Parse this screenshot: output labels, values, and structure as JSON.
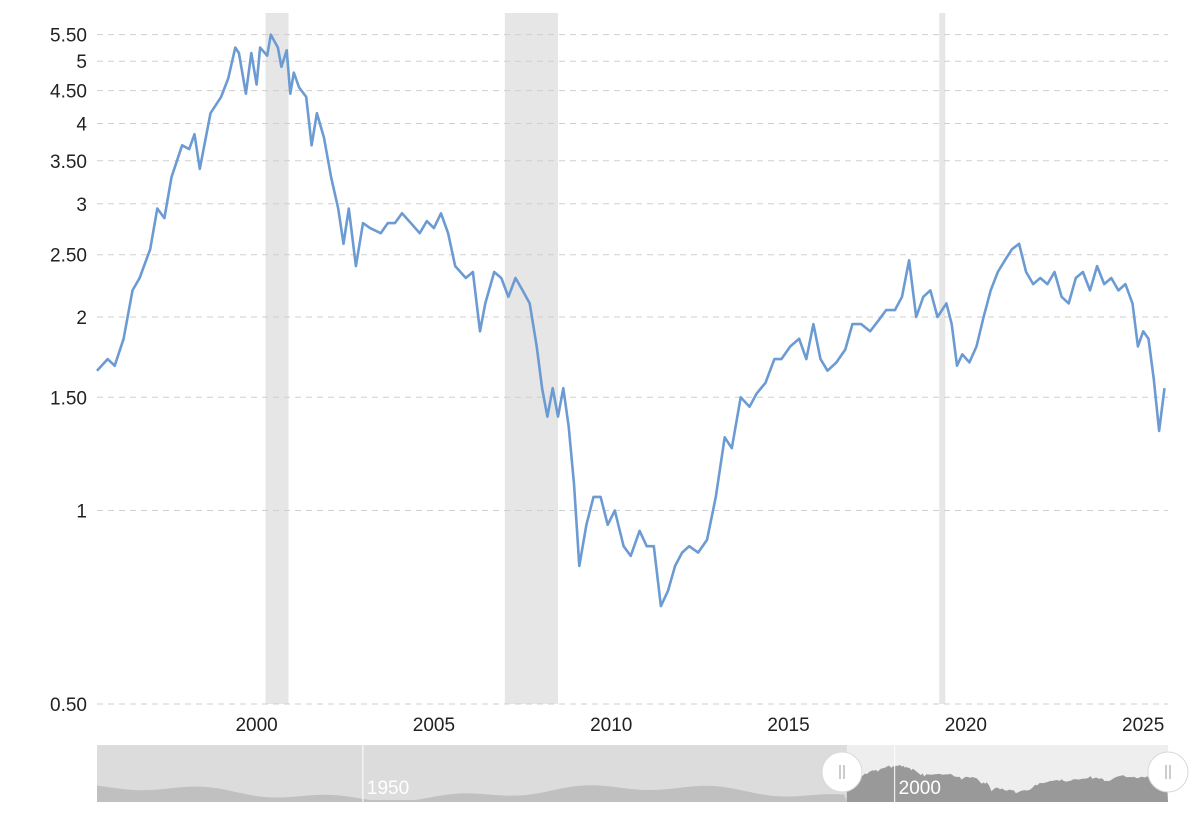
{
  "chart_data": {
    "type": "line",
    "title": "",
    "xlabel": "",
    "ylabel": "",
    "yscale": "log",
    "ylim": [
      0.5,
      5.9
    ],
    "xlim": [
      1995.5,
      2025.7
    ],
    "grid": true,
    "line_color": "#6b9bd2",
    "recession_color": "#e6e6e6",
    "y_ticks": [
      0.5,
      1,
      1.5,
      2,
      2.5,
      3,
      3.5,
      4,
      4.5,
      5,
      5.5
    ],
    "y_tick_labels": [
      "0.50",
      "1",
      "1.50",
      "2",
      "2.50",
      "3",
      "3.50",
      "4",
      "4.50",
      "5",
      "5.50"
    ],
    "x_ticks": [
      2000,
      2005,
      2010,
      2015,
      2020,
      2025
    ],
    "x_tick_labels": [
      "2000",
      "2005",
      "2010",
      "2015",
      "2020",
      "2025"
    ],
    "recessions": [
      {
        "start": 2000.25,
        "end": 2000.9
      },
      {
        "start": 2007.0,
        "end": 2008.5
      },
      {
        "start": 2019.25,
        "end": 2019.42
      }
    ],
    "series": [
      {
        "values": [
          [
            1995.5,
            1.65
          ],
          [
            1995.8,
            1.72
          ],
          [
            1996.0,
            1.68
          ],
          [
            1996.25,
            1.85
          ],
          [
            1996.5,
            2.2
          ],
          [
            1996.7,
            2.3
          ],
          [
            1997.0,
            2.55
          ],
          [
            1997.2,
            2.95
          ],
          [
            1997.4,
            2.85
          ],
          [
            1997.6,
            3.3
          ],
          [
            1997.9,
            3.7
          ],
          [
            1998.1,
            3.65
          ],
          [
            1998.25,
            3.85
          ],
          [
            1998.4,
            3.4
          ],
          [
            1998.7,
            4.15
          ],
          [
            1999.0,
            4.4
          ],
          [
            1999.2,
            4.7
          ],
          [
            1999.4,
            5.25
          ],
          [
            1999.5,
            5.15
          ],
          [
            1999.7,
            4.45
          ],
          [
            1999.85,
            5.15
          ],
          [
            2000.0,
            4.6
          ],
          [
            2000.1,
            5.25
          ],
          [
            2000.3,
            5.1
          ],
          [
            2000.4,
            5.5
          ],
          [
            2000.6,
            5.25
          ],
          [
            2000.7,
            4.9
          ],
          [
            2000.85,
            5.2
          ],
          [
            2000.95,
            4.45
          ],
          [
            2001.05,
            4.8
          ],
          [
            2001.2,
            4.55
          ],
          [
            2001.4,
            4.4
          ],
          [
            2001.55,
            3.7
          ],
          [
            2001.7,
            4.15
          ],
          [
            2001.9,
            3.8
          ],
          [
            2002.1,
            3.3
          ],
          [
            2002.3,
            2.95
          ],
          [
            2002.45,
            2.6
          ],
          [
            2002.6,
            2.95
          ],
          [
            2002.8,
            2.4
          ],
          [
            2003.0,
            2.8
          ],
          [
            2003.2,
            2.75
          ],
          [
            2003.5,
            2.7
          ],
          [
            2003.7,
            2.8
          ],
          [
            2003.9,
            2.8
          ],
          [
            2004.1,
            2.9
          ],
          [
            2004.35,
            2.8
          ],
          [
            2004.6,
            2.7
          ],
          [
            2004.8,
            2.82
          ],
          [
            2005.0,
            2.75
          ],
          [
            2005.2,
            2.9
          ],
          [
            2005.4,
            2.7
          ],
          [
            2005.6,
            2.4
          ],
          [
            2005.9,
            2.3
          ],
          [
            2006.1,
            2.35
          ],
          [
            2006.3,
            1.9
          ],
          [
            2006.45,
            2.1
          ],
          [
            2006.7,
            2.35
          ],
          [
            2006.9,
            2.3
          ],
          [
            2007.1,
            2.15
          ],
          [
            2007.3,
            2.3
          ],
          [
            2007.5,
            2.2
          ],
          [
            2007.7,
            2.1
          ],
          [
            2007.9,
            1.8
          ],
          [
            2008.05,
            1.55
          ],
          [
            2008.2,
            1.4
          ],
          [
            2008.35,
            1.55
          ],
          [
            2008.5,
            1.4
          ],
          [
            2008.65,
            1.55
          ],
          [
            2008.8,
            1.35
          ],
          [
            2008.95,
            1.1
          ],
          [
            2009.1,
            0.82
          ],
          [
            2009.3,
            0.95
          ],
          [
            2009.5,
            1.05
          ],
          [
            2009.7,
            1.05
          ],
          [
            2009.9,
            0.95
          ],
          [
            2010.1,
            1.0
          ],
          [
            2010.35,
            0.88
          ],
          [
            2010.55,
            0.85
          ],
          [
            2010.8,
            0.93
          ],
          [
            2011.0,
            0.88
          ],
          [
            2011.2,
            0.88
          ],
          [
            2011.4,
            0.71
          ],
          [
            2011.6,
            0.75
          ],
          [
            2011.8,
            0.82
          ],
          [
            2012.0,
            0.86
          ],
          [
            2012.2,
            0.88
          ],
          [
            2012.45,
            0.86
          ],
          [
            2012.7,
            0.9
          ],
          [
            2012.95,
            1.05
          ],
          [
            2013.2,
            1.3
          ],
          [
            2013.4,
            1.25
          ],
          [
            2013.65,
            1.5
          ],
          [
            2013.9,
            1.45
          ],
          [
            2014.1,
            1.52
          ],
          [
            2014.35,
            1.58
          ],
          [
            2014.6,
            1.72
          ],
          [
            2014.8,
            1.72
          ],
          [
            2015.05,
            1.8
          ],
          [
            2015.3,
            1.85
          ],
          [
            2015.5,
            1.72
          ],
          [
            2015.7,
            1.95
          ],
          [
            2015.9,
            1.72
          ],
          [
            2016.1,
            1.65
          ],
          [
            2016.35,
            1.7
          ],
          [
            2016.6,
            1.78
          ],
          [
            2016.8,
            1.95
          ],
          [
            2017.05,
            1.95
          ],
          [
            2017.3,
            1.9
          ],
          [
            2017.55,
            1.98
          ],
          [
            2017.75,
            2.05
          ],
          [
            2018.0,
            2.05
          ],
          [
            2018.2,
            2.15
          ],
          [
            2018.4,
            2.45
          ],
          [
            2018.6,
            2.0
          ],
          [
            2018.8,
            2.15
          ],
          [
            2019.0,
            2.2
          ],
          [
            2019.2,
            2.0
          ],
          [
            2019.45,
            2.1
          ],
          [
            2019.6,
            1.95
          ],
          [
            2019.75,
            1.68
          ],
          [
            2019.9,
            1.75
          ],
          [
            2020.1,
            1.7
          ],
          [
            2020.3,
            1.8
          ],
          [
            2020.5,
            2.0
          ],
          [
            2020.7,
            2.2
          ],
          [
            2020.9,
            2.35
          ],
          [
            2021.1,
            2.45
          ],
          [
            2021.3,
            2.55
          ],
          [
            2021.5,
            2.6
          ],
          [
            2021.7,
            2.35
          ],
          [
            2021.9,
            2.25
          ],
          [
            2022.1,
            2.3
          ],
          [
            2022.3,
            2.25
          ],
          [
            2022.5,
            2.35
          ],
          [
            2022.7,
            2.15
          ],
          [
            2022.9,
            2.1
          ],
          [
            2023.1,
            2.3
          ],
          [
            2023.3,
            2.35
          ],
          [
            2023.5,
            2.2
          ],
          [
            2023.7,
            2.4
          ],
          [
            2023.9,
            2.25
          ],
          [
            2024.1,
            2.3
          ],
          [
            2024.3,
            2.2
          ],
          [
            2024.5,
            2.25
          ],
          [
            2024.7,
            2.1
          ],
          [
            2024.85,
            1.8
          ],
          [
            2025.0,
            1.9
          ],
          [
            2025.15,
            1.85
          ],
          [
            2025.3,
            1.6
          ],
          [
            2025.45,
            1.33
          ],
          [
            2025.6,
            1.55
          ]
        ]
      }
    ],
    "navigator": {
      "labels": [
        "1950",
        "2000"
      ],
      "label_years": [
        1950,
        2000
      ],
      "range": [
        1925,
        2025.7
      ],
      "selected": [
        1995.5,
        2025.7
      ]
    }
  }
}
